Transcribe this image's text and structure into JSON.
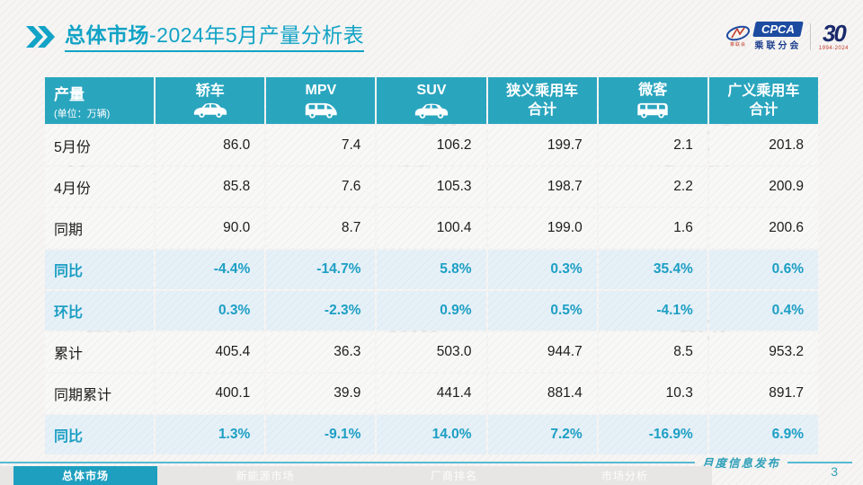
{
  "title": {
    "section": "总体市场",
    "rest": "-2024年5月产量分析表"
  },
  "logo": {
    "cpca": "CPCA",
    "cpca_sub": "乘联分会",
    "swoosh_sub": "乘联会",
    "anniversary_number": "30",
    "anniversary_years": "1994-2024"
  },
  "watermark": {
    "big": "CPCA",
    "small": "乘联分会"
  },
  "table": {
    "unit_label": "产量",
    "unit_sub": "(单位：万辆)",
    "columns": [
      {
        "line1": "轿车",
        "line2": "",
        "icon": "sedan-icon"
      },
      {
        "line1": "MPV",
        "line2": "",
        "icon": "mpv-icon"
      },
      {
        "line1": "SUV",
        "line2": "",
        "icon": "suv-icon"
      },
      {
        "line1": "狭义乘用车",
        "line2": "合计",
        "icon": ""
      },
      {
        "line1": "微客",
        "line2": "",
        "icon": "van-icon"
      },
      {
        "line1": "广义乘用车",
        "line2": "合计",
        "icon": ""
      }
    ],
    "rows": [
      {
        "label": "5月份",
        "type": "data",
        "values": [
          "86.0",
          "7.4",
          "106.2",
          "199.7",
          "2.1",
          "201.8"
        ]
      },
      {
        "label": "4月份",
        "type": "data",
        "values": [
          "85.8",
          "7.6",
          "105.3",
          "198.7",
          "2.2",
          "200.9"
        ]
      },
      {
        "label": "同期",
        "type": "data",
        "values": [
          "90.0",
          "8.7",
          "100.4",
          "199.0",
          "1.6",
          "200.6"
        ]
      },
      {
        "label": "同比",
        "type": "pct",
        "values": [
          "-4.4%",
          "-14.7%",
          "5.8%",
          "0.3%",
          "35.4%",
          "0.6%"
        ]
      },
      {
        "label": "环比",
        "type": "pct",
        "values": [
          "0.3%",
          "-2.3%",
          "0.9%",
          "0.5%",
          "-4.1%",
          "0.4%"
        ]
      },
      {
        "label": "累计",
        "type": "data",
        "values": [
          "405.4",
          "36.3",
          "503.0",
          "944.7",
          "8.5",
          "953.2"
        ]
      },
      {
        "label": "同期累计",
        "type": "data",
        "values": [
          "400.1",
          "39.9",
          "441.4",
          "881.4",
          "10.3",
          "891.7"
        ]
      },
      {
        "label": "同比",
        "type": "pct",
        "values": [
          "1.3%",
          "-9.1%",
          "14.0%",
          "7.2%",
          "-16.9%",
          "6.9%"
        ]
      }
    ]
  },
  "footer": {
    "tabs": [
      {
        "label": "总体市场",
        "active": true
      },
      {
        "label": "新能源市场",
        "active": false
      },
      {
        "label": "厂商排名",
        "active": false
      },
      {
        "label": "市场分析",
        "active": false
      }
    ],
    "release_label": "月度信息发布",
    "page_number": "3"
  },
  "colors": {
    "teal_title": "#12a3c6",
    "header_bg": "#2aa5be",
    "pct_bg": "#e6f0f7",
    "pct_text": "#1c9fc4",
    "footer_line": "#58b9d2",
    "logo_blue": "#1d4ba0",
    "anniversary_navy": "#1b2a6b",
    "anniversary_red": "#c23a2b"
  }
}
